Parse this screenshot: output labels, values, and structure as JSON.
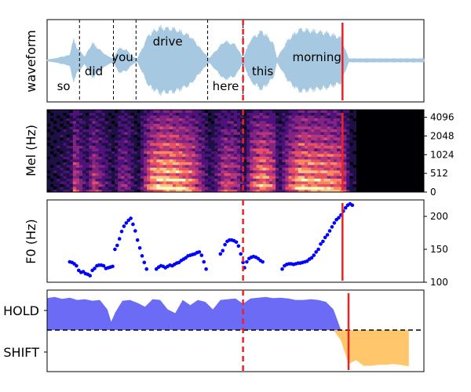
{
  "chart_data": [
    {
      "type": "area",
      "panel": "waveform",
      "ylabel": "waveform",
      "xlim": [
        0,
        5.0
      ],
      "words": [
        {
          "text": "so",
          "x": 0.22,
          "pos": "low"
        },
        {
          "text": "did",
          "x": 0.62,
          "pos": "mid"
        },
        {
          "text": "you",
          "x": 1.0,
          "pos": "upmid"
        },
        {
          "text": "drive",
          "x": 1.6,
          "pos": "high"
        },
        {
          "text": "here",
          "x": 2.37,
          "pos": "low"
        },
        {
          "text": "this",
          "x": 2.86,
          "pos": "mid"
        },
        {
          "text": "morning",
          "x": 3.58,
          "pos": "upmid"
        }
      ],
      "word_boundaries": [
        0.43,
        0.88,
        1.18,
        2.13,
        2.6
      ],
      "speech_end": 4.0,
      "envelope": {
        "x": [
          0.0,
          0.1,
          0.3,
          0.35,
          0.4,
          0.5,
          0.6,
          0.7,
          0.8,
          0.88,
          0.95,
          1.05,
          1.15,
          1.2,
          1.35,
          1.5,
          1.7,
          1.9,
          2.05,
          2.15,
          2.25,
          2.35,
          2.5,
          2.6,
          2.7,
          2.85,
          3.0,
          3.05,
          3.2,
          3.35,
          3.5,
          3.7,
          3.9,
          4.0,
          5.0
        ],
        "amp": [
          0.02,
          0.05,
          0.15,
          0.6,
          0.35,
          0.1,
          0.5,
          0.3,
          0.12,
          0.05,
          0.35,
          0.3,
          0.08,
          0.05,
          0.75,
          0.95,
          0.9,
          0.7,
          0.3,
          0.06,
          0.3,
          0.55,
          0.45,
          0.05,
          0.6,
          0.85,
          0.5,
          0.05,
          0.6,
          0.9,
          0.85,
          0.8,
          0.65,
          0.05,
          0.05
        ]
      },
      "color": "#a6c8e0"
    },
    {
      "type": "heatmap",
      "panel": "mel",
      "ylabel": "Mel (Hz)",
      "xlim": [
        0,
        5.0
      ],
      "yticks": [
        "0",
        "512",
        "1024",
        "2048",
        "4096"
      ],
      "speech_end": 4.1,
      "colormap": "magma"
    },
    {
      "type": "scatter",
      "panel": "f0",
      "ylabel": "F0 (Hz)",
      "xlim": [
        0,
        5.0
      ],
      "ylim": [
        100,
        225
      ],
      "yticks": [
        100,
        150,
        200
      ],
      "color": "#0000ff",
      "points": [
        [
          0.3,
          131
        ],
        [
          0.33,
          130
        ],
        [
          0.36,
          128
        ],
        [
          0.39,
          125
        ],
        [
          0.42,
          118
        ],
        [
          0.45,
          115
        ],
        [
          0.48,
          116
        ],
        [
          0.51,
          113
        ],
        [
          0.54,
          112
        ],
        [
          0.57,
          110
        ],
        [
          0.6,
          118
        ],
        [
          0.63,
          121
        ],
        [
          0.66,
          125
        ],
        [
          0.69,
          126
        ],
        [
          0.72,
          126
        ],
        [
          0.75,
          125
        ],
        [
          0.78,
          121
        ],
        [
          0.81,
          122
        ],
        [
          0.84,
          123
        ],
        [
          0.87,
          124
        ],
        [
          0.9,
          150
        ],
        [
          0.93,
          156
        ],
        [
          0.96,
          166
        ],
        [
          0.99,
          177
        ],
        [
          1.02,
          185
        ],
        [
          1.05,
          190
        ],
        [
          1.08,
          194
        ],
        [
          1.11,
          197
        ],
        [
          1.14,
          188
        ],
        [
          1.17,
          178
        ],
        [
          1.2,
          164
        ],
        [
          1.23,
          152
        ],
        [
          1.26,
          140
        ],
        [
          1.29,
          130
        ],
        [
          1.32,
          120
        ],
        [
          1.45,
          120
        ],
        [
          1.48,
          123
        ],
        [
          1.51,
          125
        ],
        [
          1.54,
          124
        ],
        [
          1.57,
          122
        ],
        [
          1.6,
          124
        ],
        [
          1.63,
          126
        ],
        [
          1.66,
          125
        ],
        [
          1.69,
          127
        ],
        [
          1.72,
          129
        ],
        [
          1.75,
          130
        ],
        [
          1.78,
          133
        ],
        [
          1.81,
          135
        ],
        [
          1.84,
          137
        ],
        [
          1.87,
          140
        ],
        [
          1.9,
          141
        ],
        [
          1.93,
          142
        ],
        [
          1.96,
          143
        ],
        [
          1.99,
          145
        ],
        [
          2.02,
          146
        ],
        [
          2.05,
          141
        ],
        [
          2.08,
          131
        ],
        [
          2.11,
          120
        ],
        [
          2.3,
          143
        ],
        [
          2.33,
          148
        ],
        [
          2.36,
          157
        ],
        [
          2.39,
          162
        ],
        [
          2.42,
          164
        ],
        [
          2.45,
          164
        ],
        [
          2.48,
          163
        ],
        [
          2.51,
          161
        ],
        [
          2.54,
          155
        ],
        [
          2.57,
          143
        ],
        [
          2.6,
          130
        ],
        [
          2.62,
          122
        ],
        [
          2.65,
          131
        ],
        [
          2.68,
          136
        ],
        [
          2.71,
          138
        ],
        [
          2.74,
          139
        ],
        [
          2.77,
          138
        ],
        [
          2.8,
          136
        ],
        [
          2.83,
          133
        ],
        [
          2.86,
          131
        ],
        [
          3.12,
          120
        ],
        [
          3.15,
          125
        ],
        [
          3.18,
          127
        ],
        [
          3.21,
          128
        ],
        [
          3.24,
          128
        ],
        [
          3.27,
          127
        ],
        [
          3.3,
          128
        ],
        [
          3.33,
          129
        ],
        [
          3.36,
          129
        ],
        [
          3.39,
          130
        ],
        [
          3.42,
          131
        ],
        [
          3.45,
          132
        ],
        [
          3.48,
          135
        ],
        [
          3.51,
          137
        ],
        [
          3.54,
          141
        ],
        [
          3.57,
          146
        ],
        [
          3.6,
          150
        ],
        [
          3.63,
          158
        ],
        [
          3.66,
          162
        ],
        [
          3.69,
          168
        ],
        [
          3.72,
          172
        ],
        [
          3.75,
          178
        ],
        [
          3.78,
          184
        ],
        [
          3.81,
          190
        ],
        [
          3.84,
          195
        ],
        [
          3.87,
          198
        ],
        [
          3.9,
          202
        ],
        [
          3.93,
          208
        ],
        [
          3.96,
          213
        ],
        [
          3.99,
          217
        ],
        [
          4.02,
          219
        ],
        [
          4.05,
          217
        ]
      ]
    },
    {
      "type": "area",
      "panel": "turn",
      "ylim": [
        -1.0,
        1.0
      ],
      "yticks": [
        "HOLD",
        "SHIFT"
      ],
      "threshold": 0.0,
      "hold_color": "#6b6bf5",
      "shift_color": "#ffc66b",
      "x": [
        0.0,
        0.1,
        0.2,
        0.3,
        0.4,
        0.5,
        0.6,
        0.7,
        0.8,
        0.85,
        0.9,
        0.95,
        1.0,
        1.1,
        1.2,
        1.3,
        1.4,
        1.5,
        1.6,
        1.7,
        1.8,
        1.9,
        2.0,
        2.1,
        2.2,
        2.3,
        2.4,
        2.5,
        2.6,
        2.7,
        2.8,
        2.9,
        3.0,
        3.1,
        3.2,
        3.3,
        3.4,
        3.5,
        3.6,
        3.7,
        3.8,
        3.9,
        4.0,
        4.1,
        4.2,
        4.3,
        4.4,
        4.5,
        4.6,
        4.7,
        4.8
      ],
      "y": [
        0.85,
        0.88,
        0.83,
        0.86,
        0.8,
        0.82,
        0.78,
        0.8,
        0.55,
        0.22,
        0.45,
        0.62,
        0.78,
        0.8,
        0.72,
        0.62,
        0.82,
        0.8,
        0.55,
        0.45,
        0.8,
        0.66,
        0.8,
        0.75,
        0.55,
        0.8,
        0.82,
        0.84,
        0.7,
        0.84,
        0.86,
        0.88,
        0.85,
        0.86,
        0.84,
        0.8,
        0.8,
        0.82,
        0.8,
        0.75,
        0.55,
        -0.28,
        -0.9,
        -0.8,
        -0.95,
        -0.95,
        -0.92,
        -0.92,
        -0.9,
        -0.93,
        -0.96
      ]
    }
  ],
  "shared": {
    "xlim": [
      0,
      5.0
    ],
    "dashed_marker": 2.6,
    "solid_marker_top": 3.92,
    "solid_marker_bottom": 4.0,
    "marker_color": "#ee2222"
  }
}
